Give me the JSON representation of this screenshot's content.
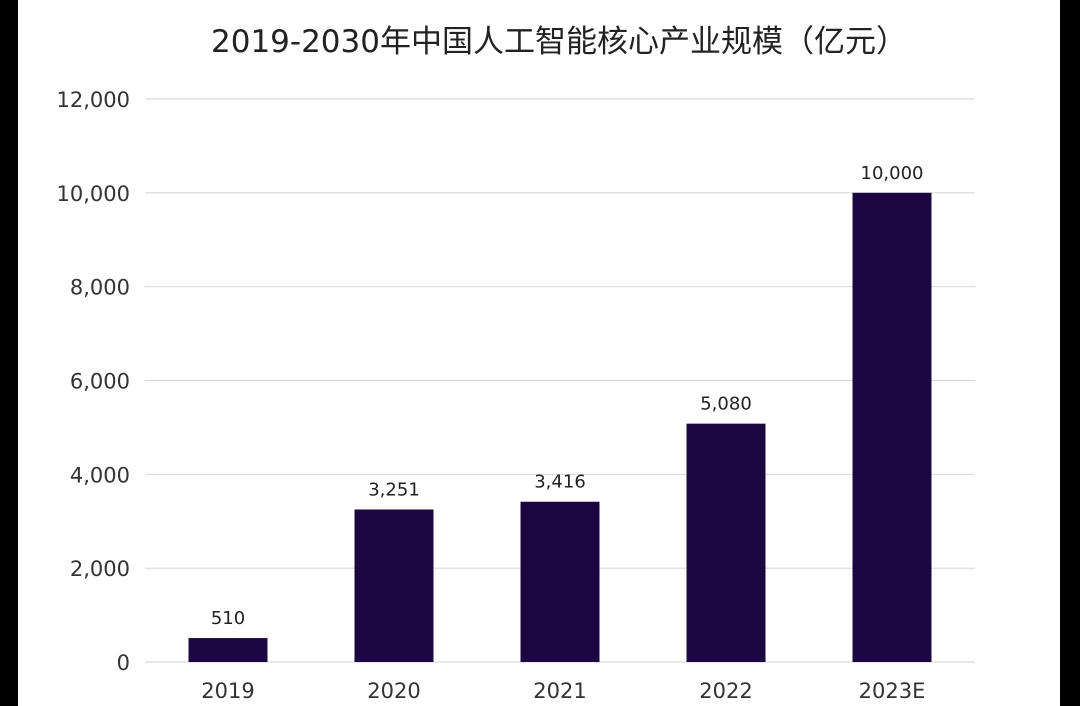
{
  "chart_data": {
    "type": "bar",
    "title": "2019-2030年中国人工智能核心产业规模（亿元）",
    "categories": [
      "2019",
      "2020",
      "2021",
      "2022",
      "2023E"
    ],
    "values": [
      510,
      3251,
      3416,
      5080,
      10000
    ],
    "data_labels": [
      "510",
      "3,251",
      "3,416",
      "5,080",
      "10,000"
    ],
    "y_ticks": [
      0,
      2000,
      4000,
      6000,
      8000,
      10000,
      12000
    ],
    "y_tick_labels": [
      "0",
      "2,000",
      "4,000",
      "6,000",
      "8,000",
      "10,000",
      "12,000"
    ],
    "ylim": [
      0,
      12000
    ],
    "grid": true,
    "legend": "none",
    "bar_color": "#1c0742",
    "xlabel": "",
    "ylabel": ""
  }
}
